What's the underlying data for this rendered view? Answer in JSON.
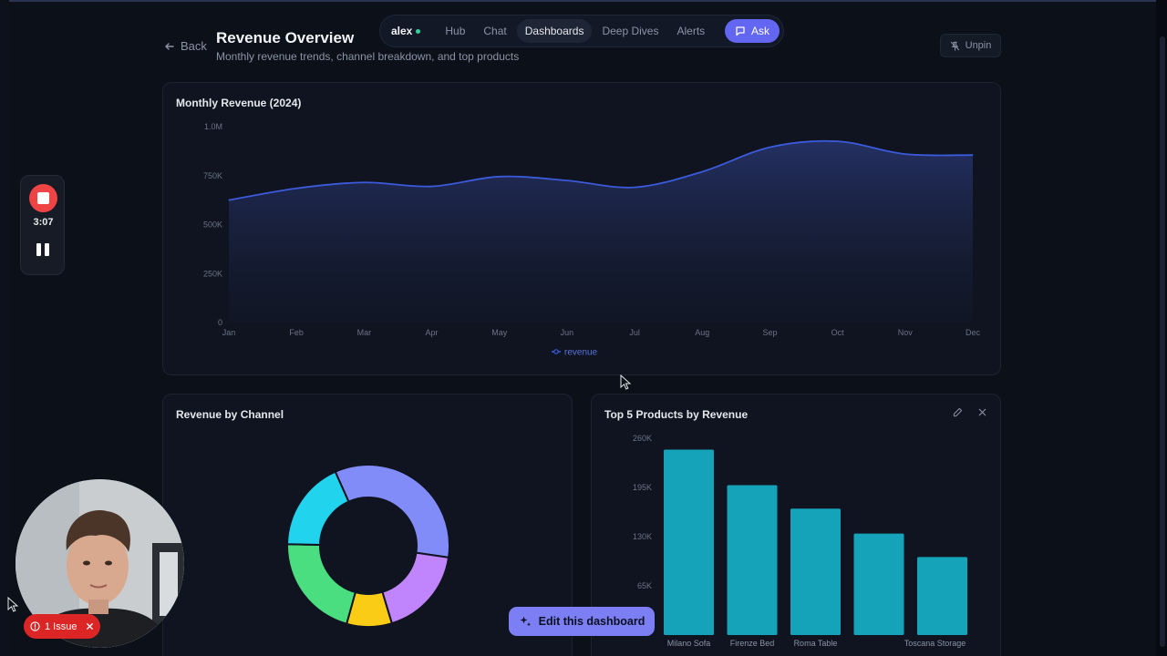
{
  "header": {
    "back_label": "Back",
    "title": "Revenue Overview",
    "subtitle": "Monthly revenue trends, channel breakdown, and top products",
    "unpin_label": "Unpin"
  },
  "nav": {
    "brand": "alex",
    "items": [
      {
        "label": "Hub",
        "active": false
      },
      {
        "label": "Chat",
        "active": false
      },
      {
        "label": "Dashboards",
        "active": true
      },
      {
        "label": "Deep Dives",
        "active": false
      },
      {
        "label": "Alerts",
        "active": false
      }
    ],
    "ask_label": "Ask"
  },
  "recorder": {
    "time": "3:07"
  },
  "issue_badge": {
    "label": "1 Issue"
  },
  "edit_button": {
    "label": "Edit this dashboard"
  },
  "colors": {
    "accent": "#6366f1",
    "line": "#3b5bdb",
    "bar": "#14a3b8",
    "danger": "#dc2626"
  },
  "chart_data": [
    {
      "type": "area",
      "title": "Monthly Revenue (2024)",
      "x": [
        "Jan",
        "Feb",
        "Mar",
        "Apr",
        "May",
        "Jun",
        "Jul",
        "Aug",
        "Sep",
        "Oct",
        "Nov",
        "Dec"
      ],
      "series": [
        {
          "name": "revenue",
          "values": [
            625000,
            685000,
            715000,
            695000,
            745000,
            725000,
            690000,
            770000,
            895000,
            925000,
            860000,
            855000
          ]
        }
      ],
      "ylim": [
        0,
        1000000
      ],
      "yticks": [
        "0",
        "250K",
        "500K",
        "750K",
        "1.0M"
      ],
      "yticks_values": [
        0,
        250000,
        500000,
        750000,
        1000000
      ],
      "legend": "bottom-center",
      "grid": false
    },
    {
      "type": "pie",
      "title": "Revenue by Channel",
      "donut": true,
      "slices": [
        {
          "value": 0.34,
          "color": "#818cf8"
        },
        {
          "value": 0.18,
          "color": "#c084fc"
        },
        {
          "value": 0.09,
          "color": "#facc15"
        },
        {
          "value": 0.21,
          "color": "#4ade80"
        },
        {
          "value": 0.18,
          "color": "#22d3ee"
        }
      ]
    },
    {
      "type": "bar",
      "title": "Top 5 Products by Revenue",
      "categories": [
        "Milano Sofa",
        "Firenze Bed",
        "Roma Table",
        "",
        "Toscana Storage"
      ],
      "values": [
        245000,
        198000,
        167000,
        134000,
        103000
      ],
      "ylim": [
        0,
        260000
      ],
      "yticks": [
        "65K",
        "130K",
        "195K",
        "260K"
      ],
      "yticks_values": [
        65000,
        130000,
        195000,
        260000
      ],
      "grid": false
    }
  ]
}
